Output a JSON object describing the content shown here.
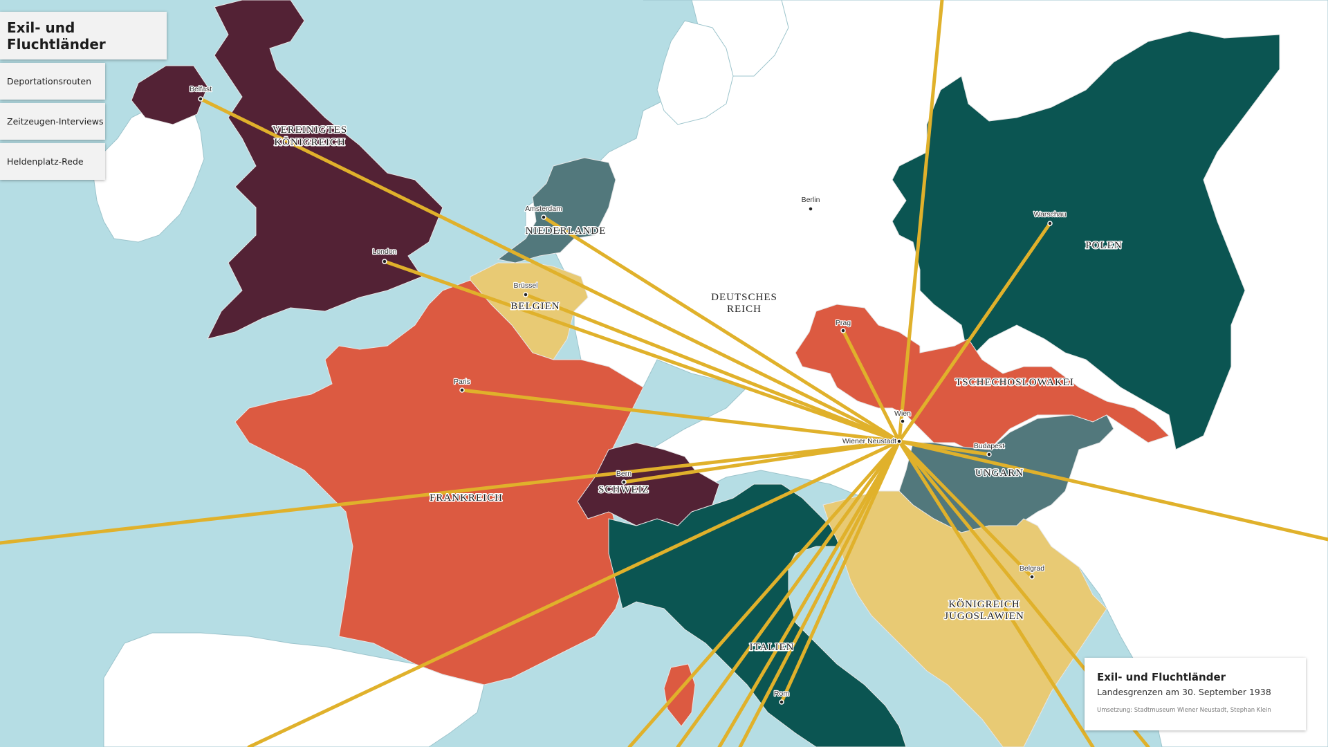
{
  "menu": {
    "title": "Exil- und Fluchtländer",
    "items": [
      {
        "label": "Deportationsrouten"
      },
      {
        "label": "Zeitzeugen-Interviews"
      },
      {
        "label": "Heldenplatz-Rede"
      }
    ]
  },
  "countries": {
    "uk": {
      "line1": "VEREINIGTES",
      "line2": "KÖNIGREICH",
      "color": "#532235"
    },
    "netherlands": {
      "name": "NIEDERLANDE",
      "color": "#52787c"
    },
    "belgium": {
      "name": "BELGIEN",
      "color": "#e8ca74"
    },
    "france": {
      "name": "FRANKREICH",
      "color": "#dc5a41"
    },
    "switzerland": {
      "name": "SCHWEIZ",
      "color": "#532235"
    },
    "germany": {
      "line1": "DEUTSCHES",
      "line2": "REICH",
      "color": "#ffffff"
    },
    "poland": {
      "name": "POLEN",
      "color": "#0b5552"
    },
    "czechoslovakia": {
      "name": "TSCHECHOSLOWAKEI",
      "color": "#dc5a41"
    },
    "hungary": {
      "name": "UNGARN",
      "color": "#52787c"
    },
    "italy": {
      "name": "ITALIEN",
      "color": "#0b5552"
    },
    "yugoslavia": {
      "line1": "KÖNIGREICH",
      "line2": "JUGOSLAWIEN",
      "color": "#e8ca74"
    }
  },
  "cities": {
    "belfast": "Belfast",
    "london": "London",
    "amsterdam": "Amsterdam",
    "brussels": "Brüssel",
    "paris": "Paris",
    "bern": "Bern",
    "berlin": "Berlin",
    "warsaw": "Warschau",
    "prague": "Prag",
    "vienna": "Wien",
    "wiener_neustadt": "Wiener Neustadt",
    "budapest": "Budapest",
    "belgrade": "Belgrad",
    "rome": "Rom"
  },
  "info": {
    "title": "Exil- und Fluchtländer",
    "subtitle": "Landesgrenzen am 30. September 1938",
    "credit": "Umsetzung: Stadtmuseum Wiener Neustadt, Stephan Klein"
  },
  "colors": {
    "sea": "#b5dde4",
    "land": "#ffffff",
    "route": "#e0b12b"
  }
}
